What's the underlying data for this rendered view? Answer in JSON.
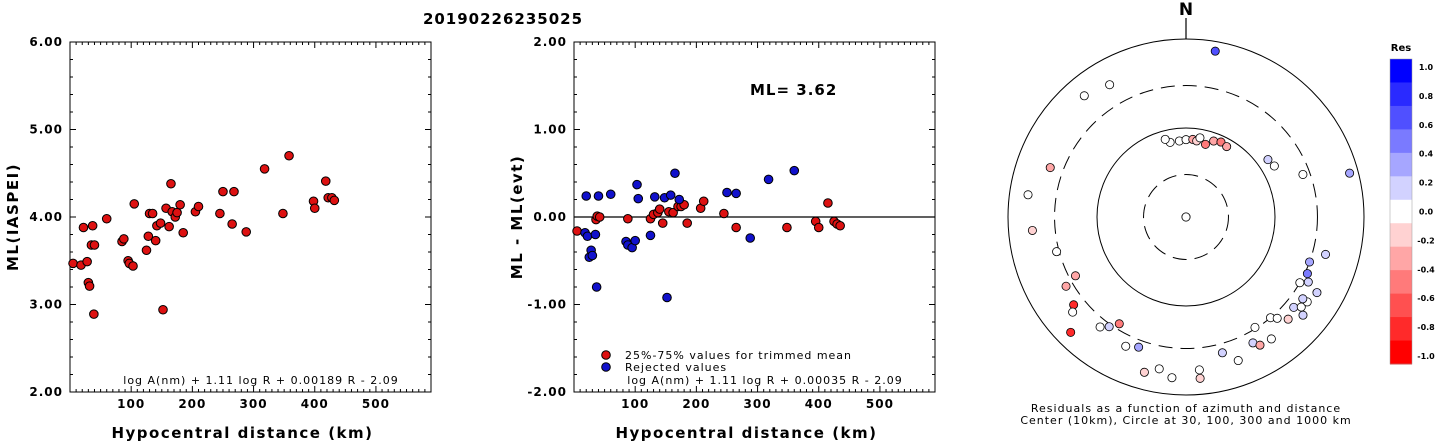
{
  "title": "20190226235025",
  "chart_data": [
    {
      "type": "scatter",
      "id": "left",
      "xlabel": "Hypocentral distance (km)",
      "ylabel": "ML(IASPEI)",
      "xlim": [
        0,
        590
      ],
      "ylim": [
        2.0,
        6.0
      ],
      "x_ticks": [
        100,
        200,
        300,
        400,
        500
      ],
      "y_ticks": [
        2.0,
        3.0,
        4.0,
        5.0,
        6.0
      ],
      "y_tick_labels": [
        "2.00",
        "3.00",
        "4.00",
        "5.00",
        "6.00"
      ],
      "formula": "log A(nm) + 1.11 log R + 0.00189 R - 2.09",
      "marker_color": "#dd1111",
      "points": [
        [
          5,
          3.47
        ],
        [
          18,
          3.45
        ],
        [
          22,
          3.88
        ],
        [
          28,
          3.49
        ],
        [
          30,
          3.25
        ],
        [
          32,
          3.21
        ],
        [
          35,
          3.68
        ],
        [
          37,
          3.9
        ],
        [
          39,
          2.89
        ],
        [
          40,
          3.68
        ],
        [
          60,
          3.98
        ],
        [
          85,
          3.72
        ],
        [
          88,
          3.75
        ],
        [
          95,
          3.5
        ],
        [
          97,
          3.47
        ],
        [
          103,
          3.44
        ],
        [
          105,
          4.15
        ],
        [
          125,
          3.62
        ],
        [
          128,
          3.78
        ],
        [
          130,
          4.04
        ],
        [
          135,
          4.04
        ],
        [
          140,
          3.73
        ],
        [
          142,
          3.9
        ],
        [
          148,
          3.93
        ],
        [
          152,
          2.94
        ],
        [
          157,
          4.1
        ],
        [
          162,
          3.89
        ],
        [
          165,
          4.38
        ],
        [
          167,
          4.06
        ],
        [
          172,
          4.0
        ],
        [
          175,
          4.05
        ],
        [
          180,
          4.14
        ],
        [
          185,
          3.82
        ],
        [
          205,
          4.06
        ],
        [
          210,
          4.12
        ],
        [
          245,
          4.04
        ],
        [
          250,
          4.29
        ],
        [
          265,
          3.92
        ],
        [
          268,
          4.29
        ],
        [
          288,
          3.83
        ],
        [
          318,
          4.55
        ],
        [
          348,
          4.04
        ],
        [
          358,
          4.7
        ],
        [
          398,
          4.18
        ],
        [
          400,
          4.1
        ],
        [
          418,
          4.41
        ],
        [
          422,
          4.22
        ],
        [
          428,
          4.22
        ],
        [
          432,
          4.19
        ]
      ]
    },
    {
      "type": "scatter",
      "id": "middle",
      "xlabel": "Hypocentral distance (km)",
      "ylabel": "ML - ML(evt)",
      "xlim": [
        0,
        590
      ],
      "ylim": [
        -2.0,
        2.0
      ],
      "x_ticks": [
        100,
        200,
        300,
        400,
        500
      ],
      "y_ticks": [
        -2.0,
        -1.0,
        0.0,
        1.0,
        2.0
      ],
      "y_tick_labels": [
        "-2.00",
        "-1.00",
        "0.00",
        "1.00",
        "2.00"
      ],
      "annotation": "ML= 3.62",
      "legend": [
        "25%-75% values for trimmed mean",
        "Rejected values"
      ],
      "legend_colors": [
        "#dd1111",
        "#1111cc"
      ],
      "formula": "log A(nm) + 1.11 log R + 0.00035 R - 2.09",
      "series": [
        {
          "name": "25%-75% values for trimmed mean",
          "color": "#dd1111",
          "points": [
            [
              5,
              -0.16
            ],
            [
              36,
              -0.03
            ],
            [
              38,
              0.01
            ],
            [
              42,
              0.0
            ],
            [
              88,
              -0.02
            ],
            [
              125,
              -0.02
            ],
            [
              130,
              0.03
            ],
            [
              137,
              0.05
            ],
            [
              140,
              0.09
            ],
            [
              145,
              -0.07
            ],
            [
              155,
              0.06
            ],
            [
              162,
              0.05
            ],
            [
              170,
              0.12
            ],
            [
              175,
              0.12
            ],
            [
              180,
              0.14
            ],
            [
              185,
              -0.07
            ],
            [
              207,
              0.1
            ],
            [
              212,
              0.18
            ],
            [
              245,
              0.04
            ],
            [
              265,
              -0.12
            ],
            [
              348,
              -0.12
            ],
            [
              395,
              -0.05
            ],
            [
              400,
              -0.12
            ],
            [
              415,
              0.16
            ],
            [
              425,
              -0.05
            ],
            [
              430,
              -0.08
            ],
            [
              435,
              -0.1
            ]
          ]
        },
        {
          "name": "Rejected values",
          "color": "#1111cc",
          "points": [
            [
              18,
              -0.18
            ],
            [
              20,
              0.24
            ],
            [
              22,
              -0.22
            ],
            [
              25,
              -0.46
            ],
            [
              28,
              -0.38
            ],
            [
              30,
              -0.44
            ],
            [
              35,
              -0.2
            ],
            [
              37,
              -0.8
            ],
            [
              40,
              0.24
            ],
            [
              60,
              0.26
            ],
            [
              85,
              -0.28
            ],
            [
              88,
              -0.32
            ],
            [
              95,
              -0.35
            ],
            [
              100,
              -0.27
            ],
            [
              103,
              0.37
            ],
            [
              105,
              0.21
            ],
            [
              125,
              -0.21
            ],
            [
              132,
              0.23
            ],
            [
              148,
              0.22
            ],
            [
              152,
              -0.92
            ],
            [
              158,
              0.25
            ],
            [
              165,
              0.5
            ],
            [
              172,
              0.2
            ],
            [
              250,
              0.28
            ],
            [
              265,
              0.27
            ],
            [
              288,
              -0.24
            ],
            [
              318,
              0.43
            ],
            [
              360,
              0.53
            ]
          ]
        }
      ]
    },
    {
      "type": "scatter",
      "id": "polar",
      "subtype": "polar",
      "top_label": "N",
      "caption_line1": "Residuals as a function of azimuth and distance",
      "caption_line2": "Center (10km), Circle at 30, 100, 300 and 1000 km",
      "rings_km": [
        30,
        100,
        300,
        1000
      ],
      "points_az_dist_res": [
        [
          10,
          5,
          0.0
        ],
        [
          20,
          9,
          0.0
        ],
        [
          355,
          72,
          0.05
        ],
        [
          0,
          74,
          0.0
        ],
        [
          5,
          75,
          -0.3
        ],
        [
          8,
          73,
          -0.2
        ],
        [
          15,
          70,
          -0.5
        ],
        [
          348,
          72,
          0.0
        ],
        [
          345,
          80,
          0.0
        ],
        [
          10,
          80,
          0.0
        ],
        [
          20,
          81,
          -0.4
        ],
        [
          25,
          85,
          -0.5
        ],
        [
          30,
          82,
          -0.3
        ],
        [
          55,
          133,
          0.15
        ],
        [
          60,
          140,
          0.0
        ],
        [
          70,
          250,
          0.0
        ],
        [
          110,
          300,
          0.4
        ],
        [
          115,
          320,
          0.5
        ],
        [
          105,
          420,
          0.2
        ],
        [
          75,
          800,
          0.35
        ],
        [
          10,
          780,
          0.6
        ],
        [
          330,
          520,
          0.0
        ],
        [
          320,
          600,
          0.0
        ],
        [
          290,
          420,
          -0.25
        ],
        [
          265,
          540,
          -0.1
        ],
        [
          278,
          620,
          0.0
        ],
        [
          255,
          320,
          0.0
        ],
        [
          242,
          255,
          -0.3
        ],
        [
          240,
          360,
          -0.25
        ],
        [
          232,
          400,
          -0.8
        ],
        [
          225,
          680,
          -0.9
        ],
        [
          212,
          260,
          -0.45
        ],
        [
          205,
          400,
          0.0
        ],
        [
          195,
          640,
          -0.2
        ],
        [
          190,
          540,
          0.0
        ],
        [
          185,
          650,
          0.0
        ],
        [
          175,
          660,
          -0.2
        ],
        [
          175,
          530,
          0.0
        ],
        [
          165,
          380,
          0.25
        ],
        [
          160,
          520,
          0.0
        ],
        [
          152,
          400,
          0.1
        ],
        [
          150,
          460,
          -0.3
        ],
        [
          148,
          290,
          0.0
        ],
        [
          145,
          470,
          0.0
        ],
        [
          140,
          300,
          0.0
        ],
        [
          138,
          340,
          0.0
        ],
        [
          135,
          420,
          -0.2
        ],
        [
          130,
          380,
          0.2
        ],
        [
          128,
          440,
          0.0
        ],
        [
          125,
          460,
          0.0
        ],
        [
          120,
          300,
          0.0
        ],
        [
          118,
          360,
          0.2
        ],
        [
          125,
          400,
          0.25
        ],
        [
          130,
          520,
          0.15
        ],
        [
          120,
          500,
          0.1
        ],
        [
          215,
          320,
          0.2
        ],
        [
          218,
          370,
          0.0
        ],
        [
          230,
          460,
          0.0
        ],
        [
          200,
          360,
          0.3
        ]
      ]
    }
  ],
  "colorbar": {
    "title": "Res",
    "labels": [
      "1.0",
      "0.8",
      "0.6",
      "0.4",
      "0.2",
      "0.0",
      "-0.2",
      "-0.4",
      "-0.6",
      "-0.8",
      "-1.0"
    ],
    "colors": [
      "#0000ff",
      "#2a2aff",
      "#5050ff",
      "#7a7aff",
      "#a6a6ff",
      "#d2d2ff",
      "#ffffff",
      "#ffd2d2",
      "#ffa6a6",
      "#ff7a7a",
      "#ff5050",
      "#ff2a2a",
      "#ff0000"
    ]
  }
}
